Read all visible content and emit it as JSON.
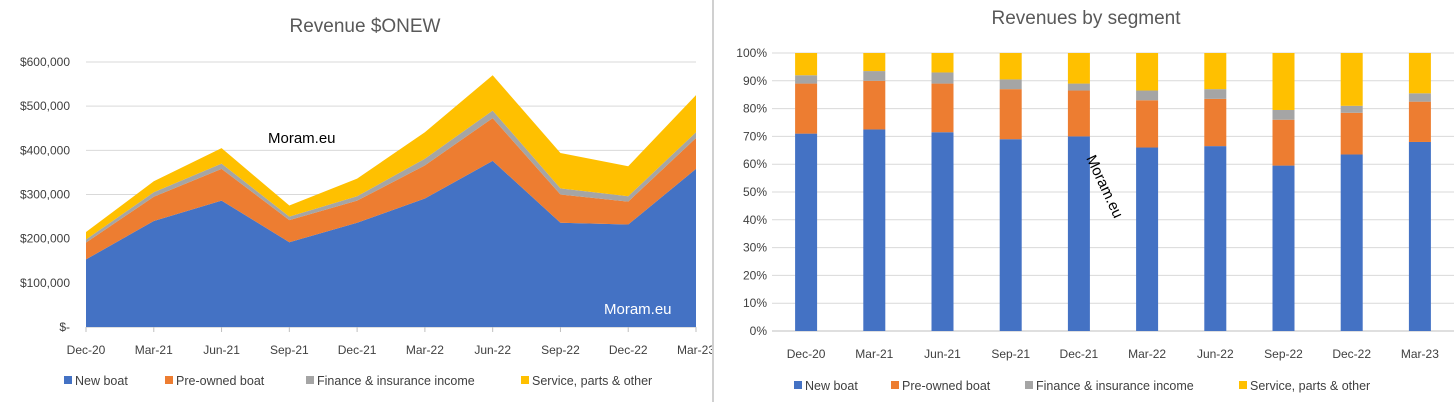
{
  "watermark": "Moram.eu",
  "colors": {
    "new_boat": "#4472C4",
    "pre_owned": "#ED7D31",
    "finance": "#A5A5A5",
    "service": "#FFC000",
    "grid": "#d9d9d9",
    "axis": "#bfbfbf"
  },
  "legend": [
    "New boat",
    "Pre-owned boat",
    "Finance & insurance income",
    "Service, parts & other"
  ],
  "chart_data": [
    {
      "type": "area",
      "stacked": true,
      "title": "Revenue $ONEW",
      "x": [
        "Dec-20",
        "Mar-21",
        "Jun-21",
        "Sep-21",
        "Dec-21",
        "Mar-22",
        "Jun-22",
        "Sep-22",
        "Dec-22",
        "Mar-23"
      ],
      "y_ticks": [
        "$-",
        "$100,000",
        "$200,000",
        "$300,000",
        "$400,000",
        "$500,000",
        "$600,000"
      ],
      "ylim": [
        0,
        600000
      ],
      "grid": true,
      "legend_position": "bottom",
      "series": [
        {
          "name": "New boat",
          "values": [
            153000,
            240000,
            286000,
            192000,
            236000,
            291000,
            376000,
            236000,
            232000,
            358000
          ]
        },
        {
          "name": "Pre-owned boat",
          "values": [
            38000,
            55000,
            72000,
            50000,
            50000,
            75000,
            97000,
            64000,
            52000,
            70000
          ]
        },
        {
          "name": "Finance & insurance income",
          "values": [
            7000,
            10000,
            12000,
            8000,
            10000,
            15000,
            17000,
            14000,
            12000,
            13000
          ]
        },
        {
          "name": "Service, parts & other",
          "values": [
            17000,
            25000,
            35000,
            25000,
            40000,
            60000,
            80000,
            80000,
            68000,
            84000
          ]
        }
      ]
    },
    {
      "type": "bar",
      "stacked": true,
      "percent": true,
      "title": "Revenues by segment",
      "categories": [
        "Dec-20",
        "Mar-21",
        "Jun-21",
        "Sep-21",
        "Dec-21",
        "Mar-22",
        "Jun-22",
        "Sep-22",
        "Dec-22",
        "Mar-23"
      ],
      "y_ticks": [
        "0%",
        "10%",
        "20%",
        "30%",
        "40%",
        "50%",
        "60%",
        "70%",
        "80%",
        "90%",
        "100%"
      ],
      "ylim": [
        0,
        100
      ],
      "grid": true,
      "legend_position": "bottom",
      "series": [
        {
          "name": "New boat",
          "values": [
            71,
            72.5,
            71.5,
            69,
            70,
            66,
            66.5,
            59.5,
            63.5,
            68
          ]
        },
        {
          "name": "Pre-owned boat",
          "values": [
            18,
            17.5,
            17.5,
            18,
            16.5,
            17,
            17,
            16.5,
            15,
            14.5
          ]
        },
        {
          "name": "Finance & insurance income",
          "values": [
            3,
            3.5,
            4,
            3.5,
            2.5,
            3.5,
            3.5,
            3.5,
            2.5,
            3
          ]
        },
        {
          "name": "Service, parts & other",
          "values": [
            8,
            6.5,
            7,
            9.5,
            11,
            13.5,
            13,
            20.5,
            19,
            14.5
          ]
        }
      ]
    }
  ]
}
